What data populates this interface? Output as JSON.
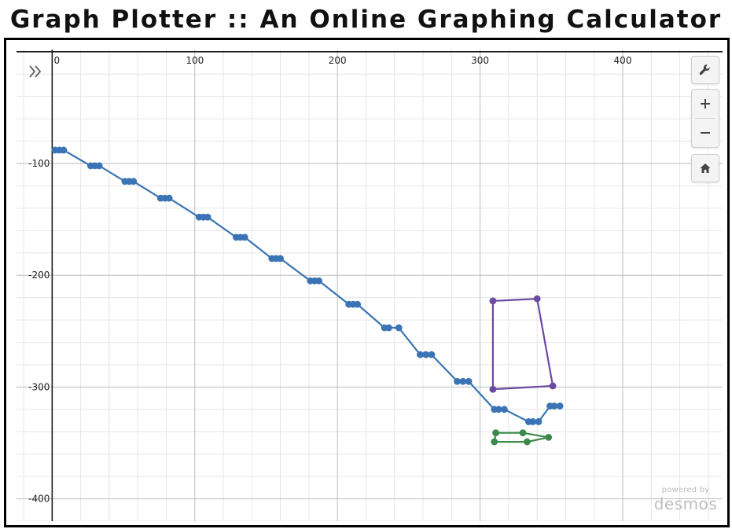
{
  "header": {
    "title": "Graph Plotter :: An Online Graphing Calculator"
  },
  "watermark": {
    "powered_by": "powered by",
    "brand": "desmos"
  },
  "controls": {
    "expand_icon": "double-chevron-right-icon",
    "settings_icon": "wrench-icon",
    "zoom_in_icon": "plus-icon",
    "zoom_out_icon": "minus-icon",
    "home_icon": "home-icon"
  },
  "colors": {
    "grid_minor": "#e6e6e6",
    "grid_major": "#bdbdbd",
    "axis": "#1a1a1a",
    "series_blue": "#3a74b4",
    "series_purple": "#6a4aa4",
    "series_green": "#3a8a4a",
    "watermark": "#bdbdbd"
  },
  "chart_data": {
    "type": "scatter",
    "x_range": [
      -25,
      470
    ],
    "y_range": [
      -420,
      2
    ],
    "x_major_step": 100,
    "y_major_step": 100,
    "minor_step": 20,
    "x_tick_labels": [
      "0",
      "100",
      "200",
      "300",
      "400"
    ],
    "y_tick_labels": [
      "-100",
      "-200",
      "-300",
      "-400"
    ],
    "series": [
      {
        "name": "blue",
        "color": "#3a74b4",
        "points": [
          [
            2,
            -88
          ],
          [
            5,
            -88
          ],
          [
            8,
            -88
          ],
          [
            27,
            -102
          ],
          [
            30,
            -102
          ],
          [
            33,
            -102
          ],
          [
            51,
            -116
          ],
          [
            54,
            -116
          ],
          [
            57,
            -116
          ],
          [
            76,
            -131
          ],
          [
            79,
            -131
          ],
          [
            82,
            -131
          ],
          [
            103,
            -148
          ],
          [
            106,
            -148
          ],
          [
            109,
            -148
          ],
          [
            129,
            -166
          ],
          [
            132,
            -166
          ],
          [
            135,
            -166
          ],
          [
            154,
            -185
          ],
          [
            157,
            -185
          ],
          [
            160,
            -185
          ],
          [
            181,
            -205
          ],
          [
            184,
            -205
          ],
          [
            187,
            -205
          ],
          [
            208,
            -226
          ],
          [
            211,
            -226
          ],
          [
            214,
            -226
          ],
          [
            233,
            -247
          ],
          [
            236,
            -247
          ],
          [
            243,
            -247
          ],
          [
            258,
            -271
          ],
          [
            262,
            -271
          ],
          [
            266,
            -271
          ],
          [
            284,
            -295
          ],
          [
            288,
            -295
          ],
          [
            292,
            -295
          ],
          [
            310,
            -320
          ],
          [
            313,
            -320
          ],
          [
            317,
            -320
          ],
          [
            334,
            -331
          ],
          [
            337,
            -331
          ],
          [
            341,
            -331
          ],
          [
            349,
            -317
          ],
          [
            352,
            -317
          ],
          [
            356,
            -317
          ]
        ]
      },
      {
        "name": "purple",
        "color": "#6a4aa4",
        "closed": true,
        "points": [
          [
            309,
            -223
          ],
          [
            340,
            -221
          ],
          [
            351,
            -299
          ],
          [
            309,
            -302
          ]
        ]
      },
      {
        "name": "green",
        "color": "#3a8a4a",
        "closed": true,
        "points": [
          [
            311,
            -341
          ],
          [
            330,
            -341
          ],
          [
            348,
            -345
          ],
          [
            333,
            -349
          ],
          [
            310,
            -349
          ]
        ]
      }
    ]
  }
}
